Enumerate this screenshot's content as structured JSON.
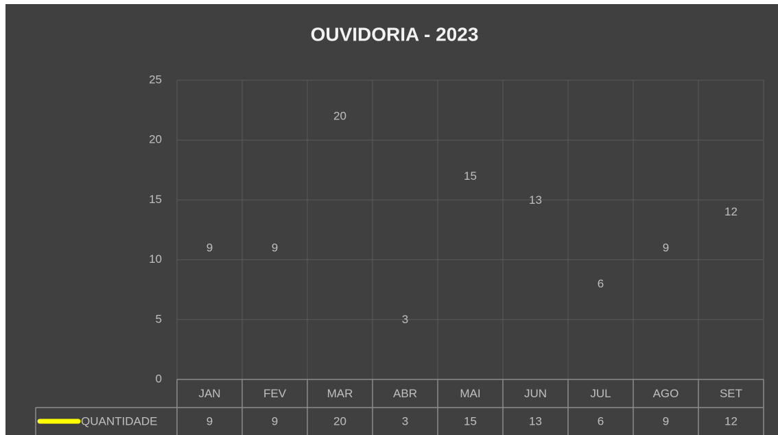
{
  "chart_data": {
    "type": "line",
    "title": "OUVIDORIA - 2023",
    "categories": [
      "JAN",
      "FEV",
      "MAR",
      "ABR",
      "MAI",
      "JUN",
      "JUL",
      "AGO",
      "SET"
    ],
    "series": [
      {
        "name": "QUANTIDADE",
        "color": "#ffff00",
        "values": [
          9,
          9,
          20,
          3,
          15,
          13,
          6,
          9,
          12
        ]
      }
    ],
    "ylim": [
      0,
      25
    ],
    "yticks": [
      0,
      5,
      10,
      15,
      20,
      25
    ],
    "grid": true,
    "data_labels": true,
    "data_table": true
  }
}
